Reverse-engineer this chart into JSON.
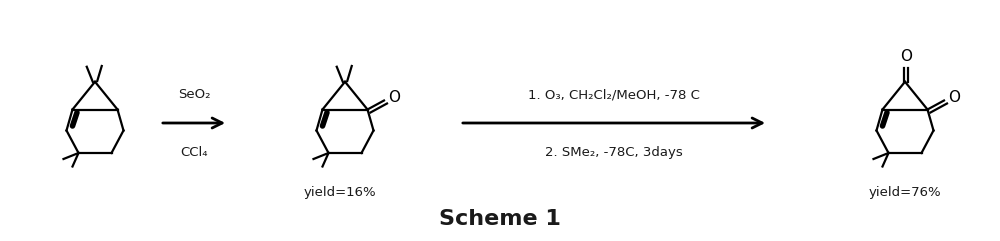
{
  "background_color": "#ffffff",
  "title": "Scheme 1",
  "title_fontsize": 16,
  "title_bold": true,
  "arrow1_label_top": "SeO₂",
  "arrow1_label_bot": "CCl₄",
  "arrow2_label_top": "1. O₃, CH₂Cl₂/MeOH, -78 C",
  "arrow2_label_bot": "2. SMe₂, -78C, 3days",
  "yield1": "yield=16%",
  "yield2": "yield=76%",
  "text_color": "#1a1a1a",
  "line_color": "#000000",
  "font_size_reagent": 9.5,
  "font_size_yield": 9.5,
  "font_size_O": 11
}
